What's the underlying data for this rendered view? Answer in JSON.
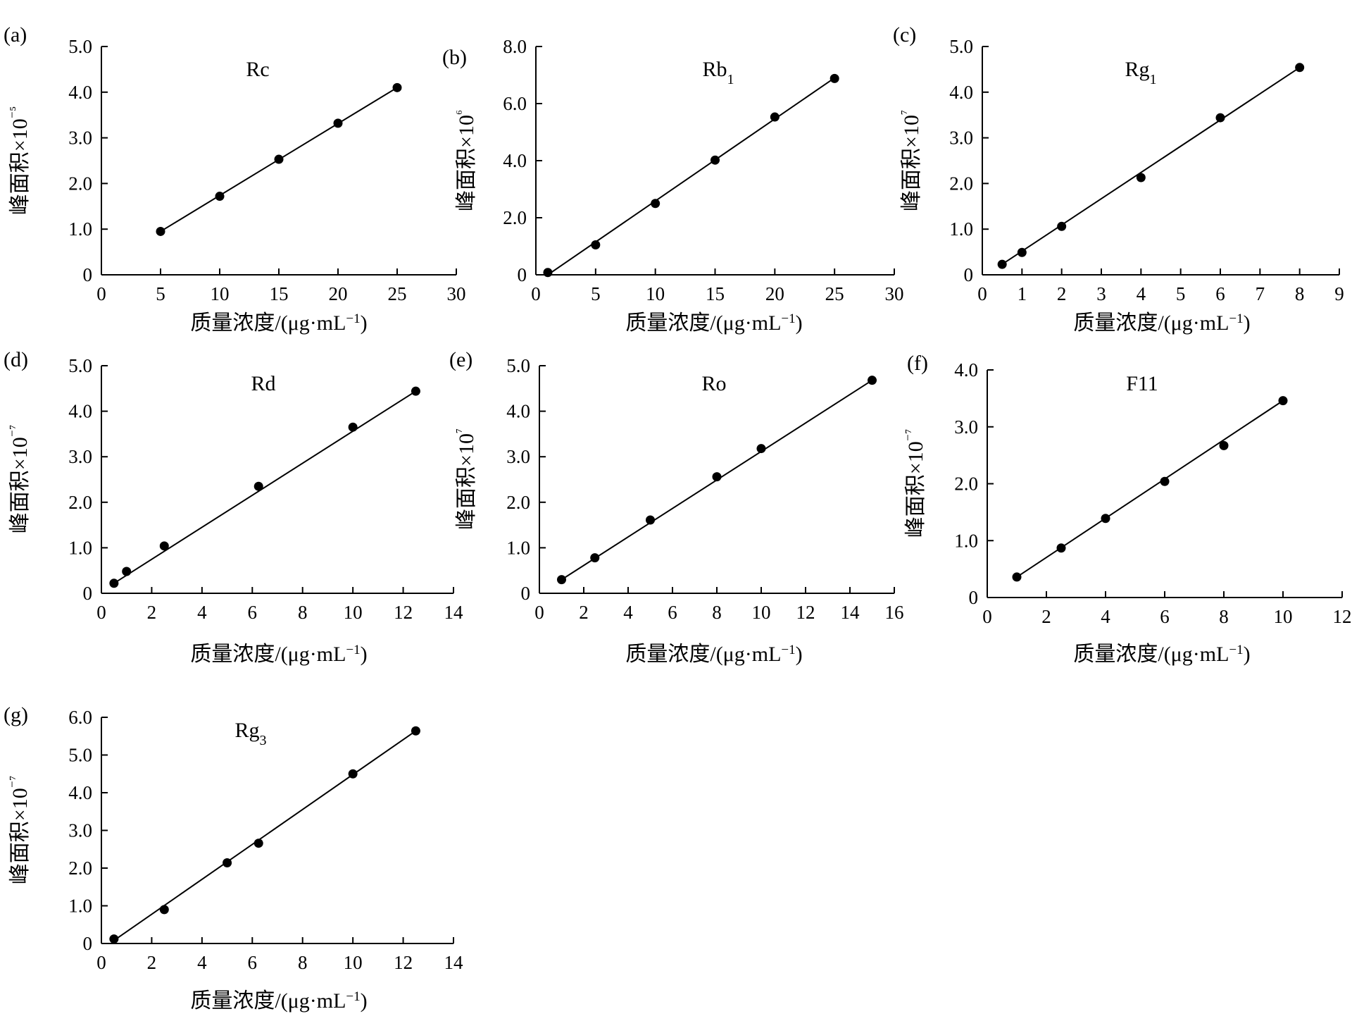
{
  "figure": {
    "panels": [
      {
        "label": "(a)"
      },
      {
        "label": "(b)"
      },
      {
        "label": "(c)"
      },
      {
        "label": "(d)"
      },
      {
        "label": "(e)"
      },
      {
        "label": "(f)"
      },
      {
        "label": "(g)"
      }
    ]
  },
  "chart_data": [
    {
      "type": "scatter",
      "panel": "(a)",
      "title": "Rc",
      "xlabel": "质量浓度/(μg·mL⁻¹)",
      "ylabel": "峰面积×10⁻⁵",
      "xlim": [
        0,
        30
      ],
      "ylim": [
        0,
        5
      ],
      "x_ticks": [
        "0",
        "5",
        "10",
        "15",
        "20",
        "25",
        "30"
      ],
      "y_ticks": [
        "0",
        "1.0",
        "2.0",
        "3.0",
        "4.0",
        "5.0"
      ],
      "x": [
        5,
        10,
        15,
        20,
        25
      ],
      "y": [
        0.95,
        1.72,
        2.53,
        3.32,
        4.1
      ],
      "fit": {
        "x": [
          5,
          25
        ],
        "y": [
          0.95,
          4.1
        ]
      }
    },
    {
      "type": "scatter",
      "panel": "(b)",
      "title": "Rb1",
      "xlabel": "质量浓度/(μg·mL⁻¹)",
      "ylabel": "峰面积×10⁶",
      "xlim": [
        0,
        30
      ],
      "ylim": [
        0,
        8
      ],
      "x_ticks": [
        "0",
        "5",
        "10",
        "15",
        "20",
        "25",
        "30"
      ],
      "y_ticks": [
        "0",
        "2.0",
        "4.0",
        "6.0",
        "8.0"
      ],
      "x": [
        1,
        5,
        10,
        15,
        20,
        25
      ],
      "y": [
        0.08,
        1.05,
        2.5,
        4.02,
        5.53,
        6.88
      ],
      "fit": {
        "x": [
          1,
          25
        ],
        "y": [
          0.0,
          6.9
        ]
      }
    },
    {
      "type": "scatter",
      "panel": "(c)",
      "title": "Rg1",
      "xlabel": "质量浓度/(μg·mL⁻¹)",
      "ylabel": "峰面积×10⁷",
      "xlim": [
        0,
        9
      ],
      "ylim": [
        0,
        5
      ],
      "x_ticks": [
        "0",
        "1",
        "2",
        "3",
        "4",
        "5",
        "6",
        "7",
        "8",
        "9"
      ],
      "y_ticks": [
        "0",
        "1.0",
        "2.0",
        "3.0",
        "4.0",
        "5.0"
      ],
      "x": [
        0.5,
        1,
        2,
        4,
        6,
        8
      ],
      "y": [
        0.23,
        0.49,
        1.06,
        2.13,
        3.44,
        4.54
      ],
      "fit": {
        "x": [
          0.5,
          8
        ],
        "y": [
          0.23,
          4.54
        ]
      }
    },
    {
      "type": "scatter",
      "panel": "(d)",
      "title": "Rd",
      "xlabel": "质量浓度/(μg·mL⁻¹)",
      "ylabel": "峰面积×10⁻⁷",
      "xlim": [
        0,
        14
      ],
      "ylim": [
        0,
        5
      ],
      "x_ticks": [
        "0",
        "2",
        "4",
        "6",
        "8",
        "10",
        "12",
        "14"
      ],
      "y_ticks": [
        "0",
        "1.0",
        "2.0",
        "3.0",
        "4.0",
        "5.0"
      ],
      "x": [
        0.5,
        1,
        2.5,
        6.25,
        10,
        12.5
      ],
      "y": [
        0.22,
        0.48,
        1.04,
        2.35,
        3.65,
        4.44
      ],
      "fit": {
        "x": [
          0.5,
          12.5
        ],
        "y": [
          0.22,
          4.44
        ]
      }
    },
    {
      "type": "scatter",
      "panel": "(e)",
      "title": "Ro",
      "xlabel": "质量浓度/(μg·mL⁻¹)",
      "ylabel": "峰面积×10⁷",
      "xlim": [
        0,
        16
      ],
      "ylim": [
        0,
        5
      ],
      "x_ticks": [
        "0",
        "2",
        "4",
        "6",
        "8",
        "10",
        "12",
        "14",
        "16"
      ],
      "y_ticks": [
        "0",
        "1.0",
        "2.0",
        "3.0",
        "4.0",
        "5.0"
      ],
      "x": [
        1,
        2.5,
        5,
        8,
        10,
        15
      ],
      "y": [
        0.3,
        0.78,
        1.61,
        2.56,
        3.18,
        4.68
      ],
      "fit": {
        "x": [
          1,
          15
        ],
        "y": [
          0.3,
          4.68
        ]
      }
    },
    {
      "type": "scatter",
      "panel": "(f)",
      "title": "F11",
      "xlabel": "质量浓度/(μg·mL⁻¹)",
      "ylabel": "峰面积×10⁻⁷",
      "xlim": [
        0,
        12
      ],
      "ylim": [
        0,
        4
      ],
      "x_ticks": [
        "0",
        "2",
        "4",
        "6",
        "8",
        "10",
        "12"
      ],
      "y_ticks": [
        "0",
        "1.0",
        "2.0",
        "3.0",
        "4.0"
      ],
      "x": [
        1,
        2.5,
        4,
        6,
        8,
        10
      ],
      "y": [
        0.36,
        0.87,
        1.39,
        2.04,
        2.67,
        3.46
      ],
      "fit": {
        "x": [
          1,
          10
        ],
        "y": [
          0.36,
          3.46
        ]
      }
    },
    {
      "type": "scatter",
      "panel": "(g)",
      "title": "Rg3",
      "xlabel": "质量浓度/(μg·mL⁻¹)",
      "ylabel": "峰面积×10⁻⁷",
      "xlim": [
        0,
        14
      ],
      "ylim": [
        0,
        6
      ],
      "x_ticks": [
        "0",
        "2",
        "4",
        "6",
        "8",
        "10",
        "12",
        "14"
      ],
      "y_ticks": [
        "0",
        "1.0",
        "2.0",
        "3.0",
        "4.0",
        "5.0",
        "6.0"
      ],
      "x": [
        0.5,
        2.5,
        5,
        6.25,
        10,
        12.5
      ],
      "y": [
        0.12,
        0.9,
        2.14,
        2.66,
        4.5,
        5.64
      ],
      "fit": {
        "x": [
          0.5,
          12.5
        ],
        "y": [
          0.08,
          5.64
        ]
      }
    }
  ]
}
